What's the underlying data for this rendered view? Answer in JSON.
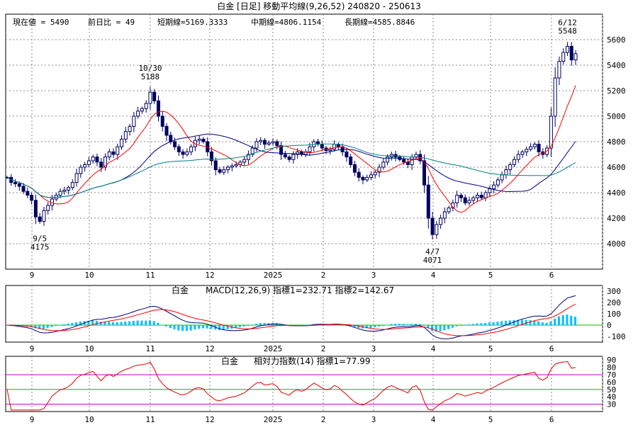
{
  "header": {
    "title": "白金 [日足]  移動平均線(9,26,52)  240820 - 250613"
  },
  "info": {
    "current": "現在値 = 5490",
    "change": "前日比 = 49",
    "short": "短期線=5169.3333",
    "mid": "中期線=4806.1154",
    "long": "長期線=4585.8846"
  },
  "colors": {
    "short_ma": "#ff0000",
    "mid_ma": "#000080",
    "long_ma": "#008080",
    "candle": "#000060",
    "grid": "#888888",
    "macd_hist": "#00c0ff",
    "rsi_line": "#e00000",
    "rsi_upper": "#c000c0",
    "rsi_mid": "#00c000"
  },
  "chart_data": [
    {
      "type": "candlestick",
      "ylim": [
        3800,
        5800
      ],
      "y_ticks": [
        "5600",
        "5400",
        "5200",
        "5000",
        "4800",
        "4600",
        "4400",
        "4200",
        "4000"
      ],
      "x_ticks": [
        "9",
        "10",
        "11",
        "12",
        "2025",
        "2",
        "3",
        "4",
        "5",
        "6"
      ],
      "annotations": [
        {
          "date": "9/5",
          "value": "4175"
        },
        {
          "date": "10/30",
          "value": "5188"
        },
        {
          "date": "4/7",
          "value": "4071"
        },
        {
          "date": "6/12",
          "value": "5548"
        }
      ],
      "close": [
        4520,
        4480,
        4470,
        4450,
        4410,
        4380,
        4340,
        4210,
        4175,
        4260,
        4300,
        4350,
        4380,
        4410,
        4420,
        4440,
        4480,
        4550,
        4600,
        4620,
        4650,
        4680,
        4640,
        4600,
        4680,
        4720,
        4700,
        4760,
        4820,
        4880,
        4920,
        5000,
        5040,
        5060,
        5100,
        5188,
        5120,
        5000,
        4920,
        4850,
        4800,
        4760,
        4720,
        4700,
        4720,
        4760,
        4810,
        4820,
        4800,
        4720,
        4650,
        4580,
        4560,
        4580,
        4600,
        4610,
        4620,
        4640,
        4660,
        4700,
        4750,
        4800,
        4810,
        4780,
        4790,
        4800,
        4770,
        4700,
        4680,
        4660,
        4700,
        4720,
        4700,
        4720,
        4760,
        4800,
        4780,
        4750,
        4730,
        4740,
        4780,
        4760,
        4720,
        4680,
        4620,
        4560,
        4520,
        4500,
        4520,
        4540,
        4560,
        4600,
        4640,
        4680,
        4700,
        4680,
        4660,
        4640,
        4620,
        4680,
        4700,
        4650,
        4460,
        4200,
        4071,
        4150,
        4200,
        4250,
        4280,
        4320,
        4380,
        4360,
        4320,
        4340,
        4360,
        4380,
        4360,
        4400,
        4430,
        4460,
        4500,
        4540,
        4580,
        4620,
        4660,
        4700,
        4720,
        4740,
        4760,
        4780,
        4720,
        4700,
        4750,
        5000,
        5300,
        5430,
        5500,
        5548,
        5441,
        5490
      ],
      "series": [
        {
          "name": "短期線",
          "last": "5169.3333"
        },
        {
          "name": "中期線",
          "last": "4806.1154"
        },
        {
          "name": "長期線",
          "last": "4585.8846"
        }
      ]
    },
    {
      "type": "line",
      "label": "白金",
      "title": "MACD(12,26,9) 指標1=232.71  指標2=142.67",
      "ylim": [
        -150,
        350
      ],
      "y_ticks": [
        "300",
        "200",
        "100",
        "0",
        "-100"
      ],
      "x_ticks": [
        "9",
        "10",
        "11",
        "12",
        "2025",
        "2",
        "3",
        "4",
        "5",
        "6"
      ],
      "last_macd": 232.71,
      "last_signal": 142.67
    },
    {
      "type": "line",
      "label": "白金",
      "title": "相対力指数(14)  指標1=77.99",
      "ylim": [
        20,
        95
      ],
      "y_ticks": [
        "90",
        "80",
        "70",
        "60",
        "50",
        "40",
        "30"
      ],
      "x_ticks": [
        "9",
        "10",
        "11",
        "12",
        "2025",
        "2",
        "3",
        "4",
        "5",
        "6"
      ],
      "levels": [
        70,
        50,
        30
      ],
      "last": 77.99
    }
  ]
}
